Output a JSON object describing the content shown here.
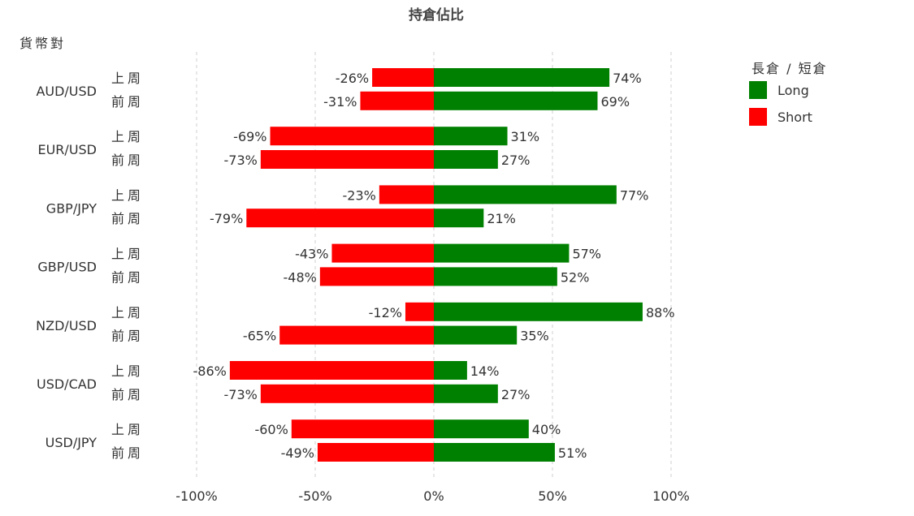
{
  "chart_data": {
    "type": "bar",
    "orientation": "horizontal",
    "stacked": "diverging",
    "title": "持倉佔比",
    "ylabel": "貨幣對",
    "legend_title": "長倉 / 短倉",
    "legend_position": "top-right",
    "grid": true,
    "xlim": [
      -100,
      100
    ],
    "x_ticks": [
      -100,
      -50,
      0,
      50,
      100
    ],
    "x_tick_labels": [
      "-100%",
      "-50%",
      "0%",
      "50%",
      "100%"
    ],
    "periods": [
      "上周",
      "前周"
    ],
    "categories": [
      "AUD/USD",
      "EUR/USD",
      "GBP/JPY",
      "GBP/USD",
      "NZD/USD",
      "USD/CAD",
      "USD/JPY"
    ],
    "series": [
      {
        "name": "Long",
        "color": "#008000",
        "values": [
          [
            74,
            69
          ],
          [
            31,
            27
          ],
          [
            77,
            21
          ],
          [
            57,
            52
          ],
          [
            88,
            35
          ],
          [
            14,
            27
          ],
          [
            40,
            51
          ]
        ],
        "labels": [
          [
            "74%",
            "69%"
          ],
          [
            "31%",
            "27%"
          ],
          [
            "77%",
            "21%"
          ],
          [
            "57%",
            "52%"
          ],
          [
            "88%",
            "35%"
          ],
          [
            "14%",
            "27%"
          ],
          [
            "40%",
            "51%"
          ]
        ]
      },
      {
        "name": "Short",
        "color": "#ff0000",
        "values": [
          [
            -26,
            -31
          ],
          [
            -69,
            -73
          ],
          [
            -23,
            -79
          ],
          [
            -43,
            -48
          ],
          [
            -12,
            -65
          ],
          [
            -86,
            -73
          ],
          [
            -60,
            -49
          ]
        ],
        "labels": [
          [
            "-26%",
            "-31%"
          ],
          [
            "-69%",
            "-73%"
          ],
          [
            "-23%",
            "-79%"
          ],
          [
            "-43%",
            "-48%"
          ],
          [
            "-12%",
            "-65%"
          ],
          [
            "-86%",
            "-73%"
          ],
          [
            "-60%",
            "-49%"
          ]
        ]
      }
    ]
  }
}
